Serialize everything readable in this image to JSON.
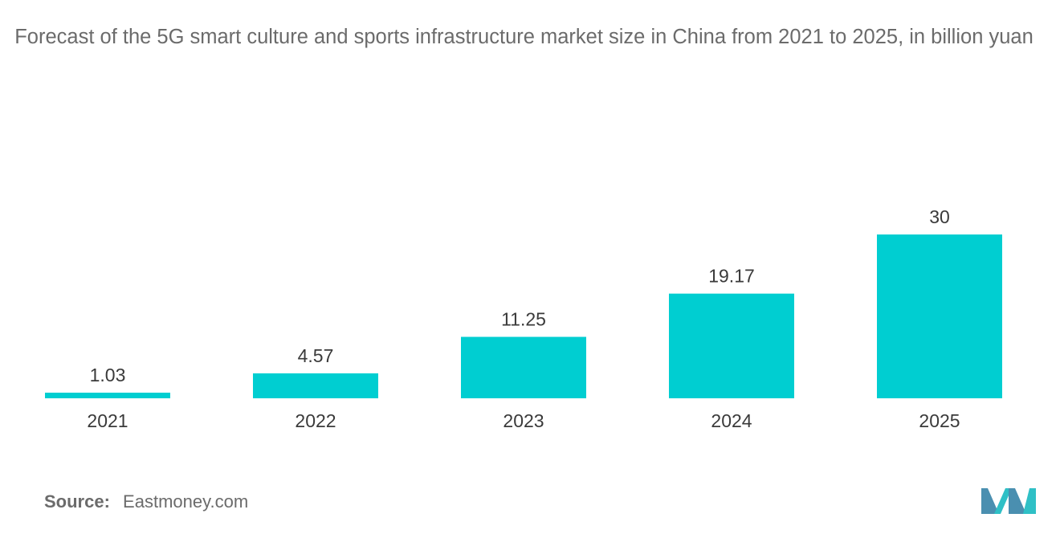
{
  "chart_data": {
    "type": "bar",
    "title": "Forecast of the 5G smart culture and sports infrastructure market size in China from 2021 to 2025, in billion yuan",
    "categories": [
      "2021",
      "2022",
      "2023",
      "2024",
      "2025"
    ],
    "values": [
      1.03,
      4.57,
      11.25,
      19.17,
      30
    ],
    "value_labels": [
      "1.03",
      "4.57",
      "11.25",
      "19.17",
      "30"
    ],
    "ylim": [
      0,
      30
    ],
    "grid": false,
    "legend": "none",
    "bar_color": "#00ced1"
  },
  "source": {
    "label": "Source:",
    "text": "Eastmoney.com"
  },
  "logo_colors": [
    "#4a8fb0",
    "#2fc0c6"
  ]
}
